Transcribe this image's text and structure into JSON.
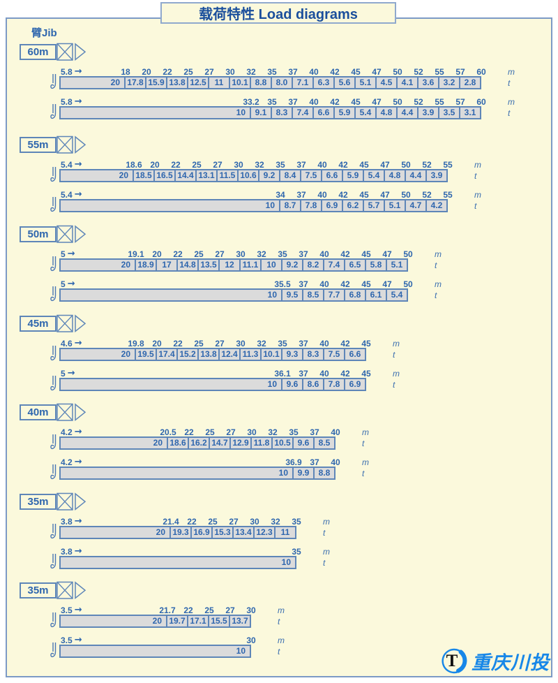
{
  "header": {
    "title": "载荷特性 Load diagrams",
    "jib_label": "臂Jib"
  },
  "logo": {
    "mark": "T",
    "text": "重庆川投"
  },
  "icons": {
    "arrow": "→"
  },
  "colors": {
    "background": "#FBF9DC",
    "panel_border": "#7C9AC6",
    "accent_blue": "#2E66AE",
    "bar_fill": "#DBDBDB",
    "bar_border": "#5E86B8",
    "logo_blue": "#1787E8"
  },
  "chart_data": {
    "type": "table",
    "title": "载荷特性 Load diagrams",
    "units": {
      "radius": "m",
      "load": "t"
    },
    "sections": [
      {
        "jib": "60m",
        "rows": [
          {
            "min_radius": "5.8",
            "radii": [
              "18",
              "20",
              "22",
              "25",
              "27",
              "30",
              "32",
              "35",
              "37",
              "40",
              "42",
              "45",
              "47",
              "50",
              "52",
              "55",
              "57",
              "60"
            ],
            "loads": [
              "20",
              "17.8",
              "15.9",
              "13.8",
              "12.5",
              "11",
              "10.1",
              "8.8",
              "8.0",
              "7.1",
              "6.3",
              "5.6",
              "5.1",
              "4.5",
              "4.1",
              "3.6",
              "3.2",
              "2.8"
            ]
          },
          {
            "min_radius": "5.8",
            "radii": [
              "33.2",
              "35",
              "37",
              "40",
              "42",
              "45",
              "47",
              "50",
              "52",
              "55",
              "57",
              "60"
            ],
            "loads": [
              "10",
              "9.1",
              "8.3",
              "7.4",
              "6.6",
              "5.9",
              "5.4",
              "4.8",
              "4.4",
              "3.9",
              "3.5",
              "3.1"
            ]
          }
        ]
      },
      {
        "jib": "55m",
        "rows": [
          {
            "min_radius": "5.4",
            "radii": [
              "18.6",
              "20",
              "22",
              "25",
              "27",
              "30",
              "32",
              "35",
              "37",
              "40",
              "42",
              "45",
              "47",
              "50",
              "52",
              "55"
            ],
            "loads": [
              "20",
              "18.5",
              "16.5",
              "14.4",
              "13.1",
              "11.5",
              "10.6",
              "9.2",
              "8.4",
              "7.5",
              "6.6",
              "5.9",
              "5.4",
              "4.8",
              "4.4",
              "3.9"
            ]
          },
          {
            "min_radius": "5.4",
            "radii": [
              "34",
              "37",
              "40",
              "42",
              "45",
              "47",
              "50",
              "52",
              "55"
            ],
            "loads": [
              "10",
              "8.7",
              "7.8",
              "6.9",
              "6.2",
              "5.7",
              "5.1",
              "4.7",
              "4.2"
            ]
          }
        ]
      },
      {
        "jib": "50m",
        "rows": [
          {
            "min_radius": "5",
            "radii": [
              "19.1",
              "20",
              "22",
              "25",
              "27",
              "30",
              "32",
              "35",
              "37",
              "40",
              "42",
              "45",
              "47",
              "50"
            ],
            "loads": [
              "20",
              "18.9",
              "17",
              "14.8",
              "13.5",
              "12",
              "11.1",
              "10",
              "9.2",
              "8.2",
              "7.4",
              "6.5",
              "5.8",
              "5.1"
            ]
          },
          {
            "min_radius": "5",
            "radii": [
              "35.5",
              "37",
              "40",
              "42",
              "45",
              "47",
              "50"
            ],
            "loads": [
              "10",
              "9.5",
              "8.5",
              "7.7",
              "6.8",
              "6.1",
              "5.4"
            ]
          }
        ]
      },
      {
        "jib": "45m",
        "rows": [
          {
            "min_radius": "4.6",
            "radii": [
              "19.8",
              "20",
              "22",
              "25",
              "27",
              "30",
              "32",
              "35",
              "37",
              "40",
              "42",
              "45"
            ],
            "loads": [
              "20",
              "19.5",
              "17.4",
              "15.2",
              "13.8",
              "12.4",
              "11.3",
              "10.1",
              "9.3",
              "8.3",
              "7.5",
              "6.6"
            ]
          },
          {
            "min_radius": "5",
            "radii": [
              "36.1",
              "37",
              "40",
              "42",
              "45"
            ],
            "loads": [
              "10",
              "9.6",
              "8.6",
              "7.8",
              "6.9"
            ]
          }
        ]
      },
      {
        "jib": "40m",
        "rows": [
          {
            "min_radius": "4.2",
            "radii": [
              "20.5",
              "22",
              "25",
              "27",
              "30",
              "32",
              "35",
              "37",
              "40"
            ],
            "loads": [
              "20",
              "18.6",
              "16.2",
              "14.7",
              "12.9",
              "11.8",
              "10.5",
              "9.6",
              "8.5"
            ]
          },
          {
            "min_radius": "4.2",
            "radii": [
              "36.9",
              "37",
              "40"
            ],
            "loads": [
              "10",
              "9.9",
              "8.8"
            ]
          }
        ]
      },
      {
        "jib": "35m",
        "rows": [
          {
            "min_radius": "3.8",
            "radii": [
              "21.4",
              "22",
              "25",
              "27",
              "30",
              "32",
              "35"
            ],
            "loads": [
              "20",
              "19.3",
              "16.9",
              "15.3",
              "13.4",
              "12.3",
              "11"
            ]
          },
          {
            "min_radius": "3.8",
            "radii": [
              "35"
            ],
            "loads": [
              "10"
            ]
          }
        ]
      },
      {
        "jib": "35m",
        "rows": [
          {
            "min_radius": "3.5",
            "radii": [
              "21.7",
              "22",
              "25",
              "27",
              "30"
            ],
            "loads": [
              "20",
              "19.7",
              "17.1",
              "15.5",
              "13.7"
            ]
          },
          {
            "min_radius": "3.5",
            "radii": [
              "30"
            ],
            "loads": [
              "10"
            ]
          }
        ]
      }
    ]
  }
}
